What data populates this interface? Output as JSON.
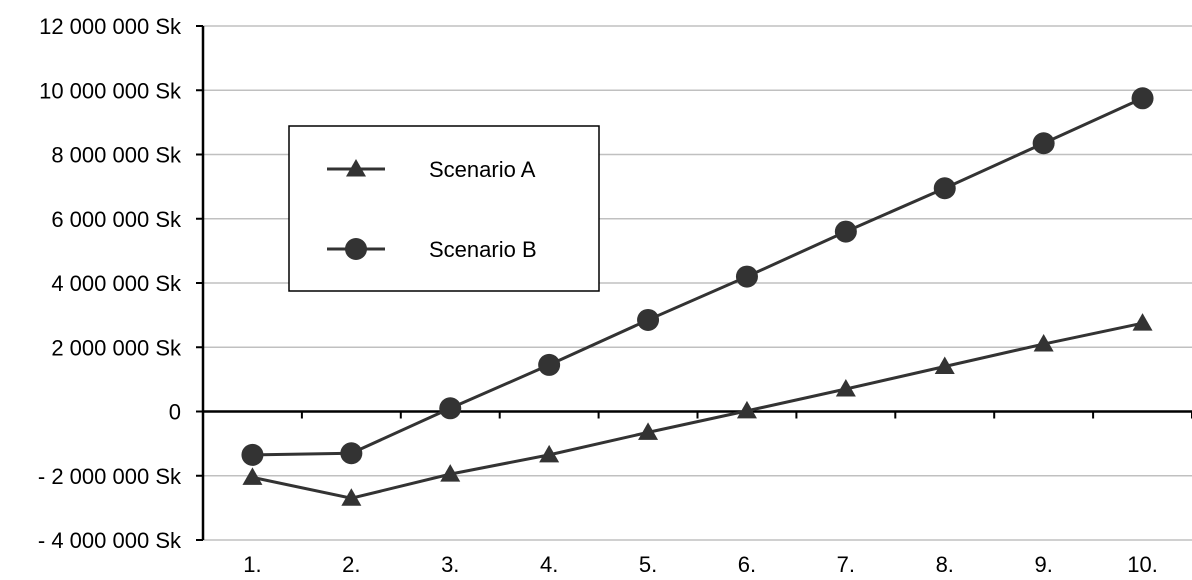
{
  "chart_data": {
    "type": "line",
    "categories": [
      "1.",
      "2.",
      "3.",
      "4.",
      "5.",
      "6.",
      "7.",
      "8.",
      "9.",
      "10."
    ],
    "y_tick_labels": [
      {
        "value": 12000000,
        "label": "12 000 000 Sk"
      },
      {
        "value": 10000000,
        "label": "10 000 000 Sk"
      },
      {
        "value": 8000000,
        "label": "8 000 000 Sk"
      },
      {
        "value": 6000000,
        "label": "6 000 000 Sk"
      },
      {
        "value": 4000000,
        "label": "4 000 000 Sk"
      },
      {
        "value": 2000000,
        "label": "2 000 000 Sk"
      },
      {
        "value": 0,
        "label": "0"
      },
      {
        "value": -2000000,
        "label": "- 2 000 000 Sk"
      },
      {
        "value": -4000000,
        "label": "- 4 000 000 Sk"
      }
    ],
    "ylim": [
      -4000000,
      12000000
    ],
    "grid": true,
    "legend_position": "upper-left",
    "series": [
      {
        "name": "Scenario A",
        "marker": "triangle",
        "values": [
          -2050000,
          -2700000,
          -1950000,
          -1350000,
          -650000,
          20000,
          700000,
          1400000,
          2100000,
          2750000
        ]
      },
      {
        "name": "Scenario B",
        "marker": "circle",
        "values": [
          -1350000,
          -1300000,
          100000,
          1450000,
          2850000,
          4200000,
          5600000,
          6950000,
          8350000,
          9750000
        ]
      }
    ],
    "colors": {
      "line": "#333333",
      "grid": "#c0c0c0",
      "axis": "#000000"
    }
  }
}
